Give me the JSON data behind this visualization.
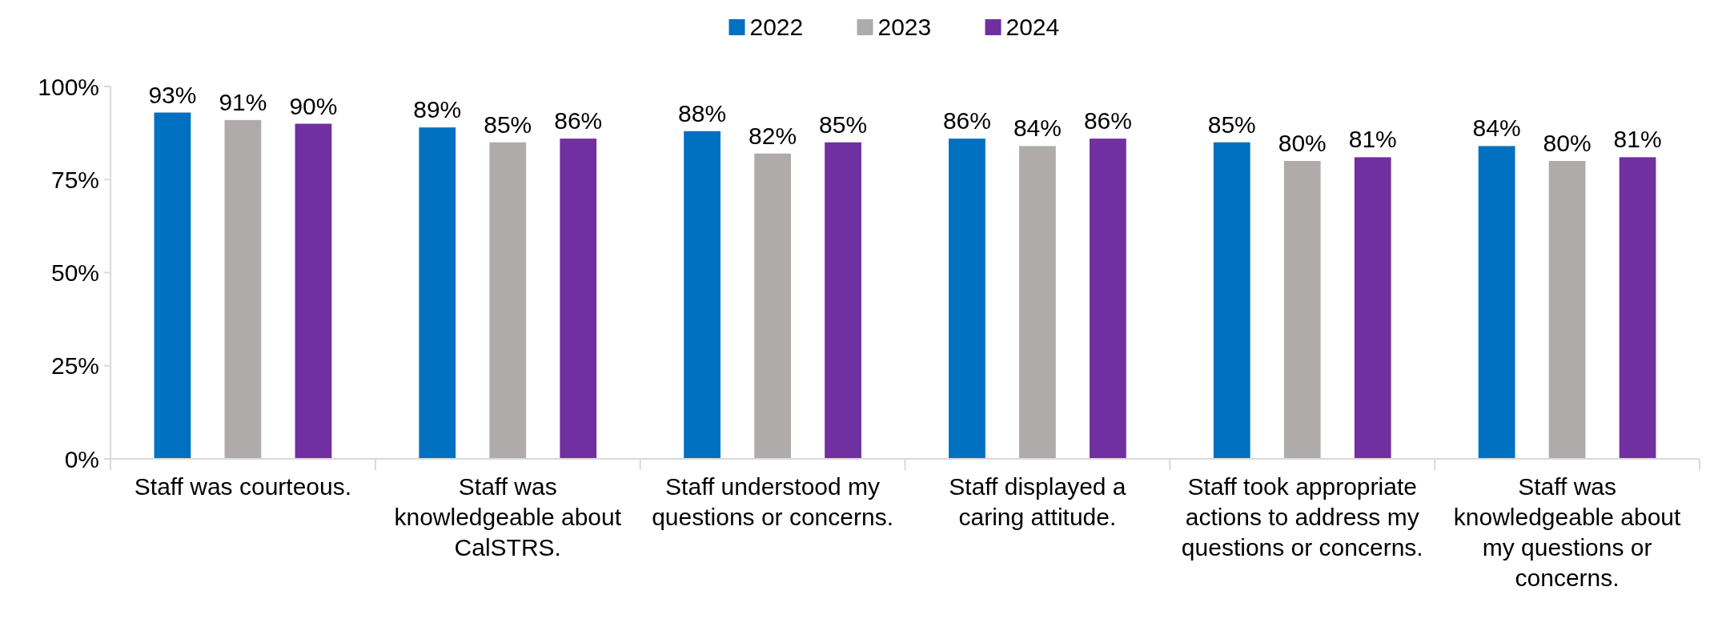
{
  "chart_data": {
    "type": "bar",
    "categories": [
      "Staff was courteous.",
      "Staff was knowledgeable about CalSTRS.",
      "Staff understood my questions or concerns.",
      "Staff displayed a caring attitude.",
      "Staff took appropriate actions to address my questions or concerns.",
      "Staff was knowledgeable about my questions or concerns."
    ],
    "series": [
      {
        "name": "2022",
        "color": "#0070c0",
        "values": [
          93,
          89,
          88,
          86,
          85,
          84
        ],
        "value_labels": [
          "93%",
          "89%",
          "88%",
          "86%",
          "85%",
          "84%"
        ]
      },
      {
        "name": "2023",
        "color": "#afabab",
        "values": [
          91,
          85,
          82,
          84,
          80,
          80
        ],
        "value_labels": [
          "91%",
          "85%",
          "82%",
          "84%",
          "80%",
          "80%"
        ]
      },
      {
        "name": "2024",
        "color": "#7030a0",
        "values": [
          90,
          86,
          85,
          86,
          81,
          81
        ],
        "value_labels": [
          "90%",
          "86%",
          "85%",
          "86%",
          "81%",
          "81%"
        ]
      }
    ],
    "ylim": [
      0,
      100
    ],
    "yticks": [
      {
        "value": 0,
        "label": "0%"
      },
      {
        "value": 25,
        "label": "25%"
      },
      {
        "value": 50,
        "label": "50%"
      },
      {
        "value": 75,
        "label": "75%"
      },
      {
        "value": 100,
        "label": "100%"
      }
    ],
    "legend": "top",
    "grid": false
  }
}
